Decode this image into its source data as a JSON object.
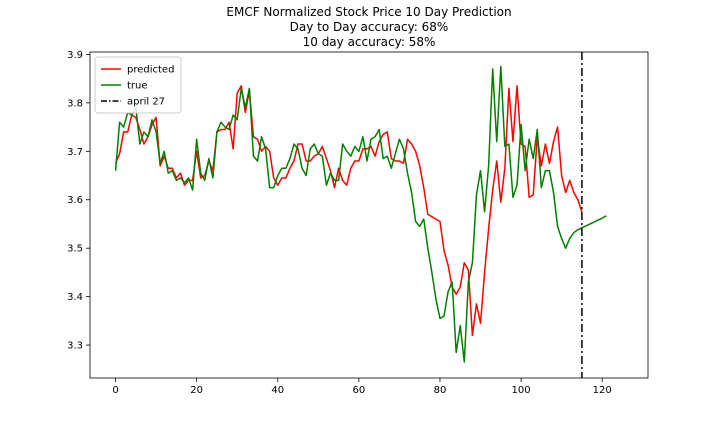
{
  "chart_data": {
    "type": "line",
    "title": "EMCF Normalized Stock Price 10 Day Prediction",
    "subtitle_lines": [
      "Day to Day accuracy: 68%",
      "10 day accuracy: 58%"
    ],
    "xlabel": "",
    "ylabel": "",
    "xlim": [
      -6.3,
      131.3
    ],
    "ylim": [
      3.232,
      3.905
    ],
    "xticks": [
      0,
      20,
      40,
      60,
      80,
      100,
      120
    ],
    "yticks": [
      3.3,
      3.4,
      3.5,
      3.6,
      3.7,
      3.8,
      3.9
    ],
    "grid": false,
    "legend_position": "upper-left",
    "series": [
      {
        "name": "predicted",
        "color": "#ff0000",
        "x_start": 0,
        "values": [
          3.675,
          3.695,
          3.74,
          3.74,
          3.775,
          3.77,
          3.745,
          3.715,
          3.73,
          3.755,
          3.77,
          3.67,
          3.69,
          3.665,
          3.665,
          3.645,
          3.655,
          3.63,
          3.64,
          3.64,
          3.7,
          3.645,
          3.65,
          3.68,
          3.66,
          3.74,
          3.745,
          3.745,
          3.76,
          3.705,
          3.82,
          3.835,
          3.78,
          3.825,
          3.73,
          3.725,
          3.7,
          3.71,
          3.7,
          3.645,
          3.63,
          3.645,
          3.645,
          3.665,
          3.68,
          3.715,
          3.715,
          3.68,
          3.68,
          3.69,
          3.695,
          3.71,
          3.685,
          3.66,
          3.625,
          3.665,
          3.64,
          3.63,
          3.665,
          3.68,
          3.68,
          3.705,
          3.705,
          3.71,
          3.69,
          3.72,
          3.735,
          3.74,
          3.685,
          3.68,
          3.68,
          3.675,
          3.725,
          3.715,
          3.7,
          3.67,
          3.625,
          3.57,
          3.565,
          3.56,
          3.555,
          3.495,
          3.465,
          3.42,
          3.405,
          3.42,
          3.47,
          3.455,
          3.32,
          3.385,
          3.345,
          3.45,
          3.54,
          3.62,
          3.68,
          3.595,
          3.665,
          3.83,
          3.72,
          3.835,
          3.715,
          3.71,
          3.605,
          3.61,
          3.73,
          3.67,
          3.715,
          3.675,
          3.72,
          3.75,
          3.65,
          3.615,
          3.64,
          3.615,
          3.6,
          3.575
        ]
      },
      {
        "name": "true",
        "color": "#008000",
        "x_start": 0,
        "values": [
          3.66,
          3.76,
          3.75,
          3.78,
          3.775,
          3.79,
          3.715,
          3.74,
          3.73,
          3.765,
          3.74,
          3.675,
          3.7,
          3.655,
          3.66,
          3.64,
          3.645,
          3.635,
          3.645,
          3.62,
          3.725,
          3.655,
          3.64,
          3.685,
          3.645,
          3.74,
          3.76,
          3.75,
          3.745,
          3.775,
          3.765,
          3.83,
          3.79,
          3.83,
          3.69,
          3.68,
          3.73,
          3.705,
          3.625,
          3.625,
          3.65,
          3.665,
          3.665,
          3.685,
          3.715,
          3.705,
          3.665,
          3.65,
          3.705,
          3.715,
          3.695,
          3.69,
          3.63,
          3.655,
          3.64,
          3.64,
          3.715,
          3.7,
          3.69,
          3.71,
          3.7,
          3.73,
          3.68,
          3.725,
          3.73,
          3.745,
          3.685,
          3.69,
          3.665,
          3.695,
          3.725,
          3.705,
          3.655,
          3.615,
          3.555,
          3.545,
          3.56,
          3.5,
          3.45,
          3.395,
          3.355,
          3.36,
          3.41,
          3.43,
          3.285,
          3.34,
          3.265,
          3.43,
          3.47,
          3.61,
          3.66,
          3.575,
          3.67,
          3.87,
          3.72,
          3.875,
          3.71,
          3.715,
          3.605,
          3.63,
          3.755,
          3.66,
          3.725,
          3.685,
          3.745,
          3.625,
          3.66,
          3.66,
          3.615,
          3.545,
          3.52,
          3.5,
          3.52,
          3.532,
          3.538,
          3.542,
          3.546,
          3.55,
          3.554,
          3.558,
          3.562,
          3.567
        ]
      }
    ],
    "reference_lines": [
      {
        "name": "april 27",
        "orientation": "vertical",
        "x": 115,
        "color": "#000000",
        "style": "dash-dot"
      }
    ]
  }
}
